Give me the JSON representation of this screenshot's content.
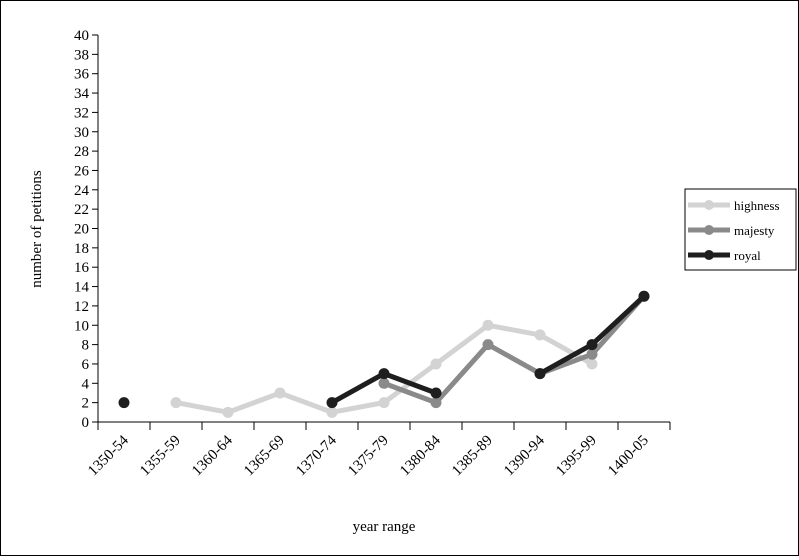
{
  "chart_data": {
    "type": "line",
    "title": "",
    "xlabel": "year range",
    "ylabel": "number of petitions",
    "categories": [
      "1350-54",
      "1355-59",
      "1360-64",
      "1365-69",
      "1370-74",
      "1375-79",
      "1380-84",
      "1385-89",
      "1390-94",
      "1395-99",
      "1400-05"
    ],
    "ylim": [
      0,
      40
    ],
    "yticks": [
      0,
      2,
      4,
      6,
      8,
      10,
      12,
      14,
      16,
      18,
      20,
      22,
      24,
      26,
      28,
      30,
      32,
      34,
      36,
      38,
      40
    ],
    "grid": false,
    "legend_position": "right",
    "series": [
      {
        "name": "highness",
        "color": "#d3d3d3",
        "points": [
          [
            1.5,
            2
          ],
          [
            2.5,
            1
          ],
          [
            3.5,
            3
          ],
          [
            4.5,
            1
          ],
          [
            5.5,
            2
          ],
          [
            6.5,
            6
          ],
          [
            7.5,
            10
          ],
          [
            8.5,
            9
          ],
          [
            9.5,
            6
          ]
        ]
      },
      {
        "name": "majesty",
        "color": "#8a8a8a",
        "points": [
          [
            5.5,
            4
          ],
          [
            6.5,
            2
          ],
          [
            7.5,
            8
          ],
          [
            8.5,
            5
          ],
          [
            9.5,
            7
          ],
          [
            10.5,
            13
          ]
        ]
      },
      {
        "name": "royal",
        "color": "#1e1e1e",
        "points": [
          [
            0.5,
            2
          ],
          [
            4.5,
            2
          ],
          [
            5.5,
            5
          ],
          [
            6.5,
            3
          ],
          [
            8.5,
            5
          ],
          [
            9.5,
            8
          ],
          [
            10.5,
            13
          ]
        ]
      }
    ],
    "segments": {
      "highness": [
        [
          1.5,
          2.5,
          3.5,
          4.5,
          5.5,
          6.5,
          7.5,
          8.5,
          9.5
        ]
      ],
      "majesty": [
        [
          5.5,
          6.5,
          7.5,
          8.5,
          9.5,
          10.5
        ]
      ],
      "royal": [
        [
          0.5
        ],
        [
          4.5,
          5.5,
          6.5
        ],
        [
          8.5,
          9.5,
          10.5
        ]
      ]
    }
  }
}
